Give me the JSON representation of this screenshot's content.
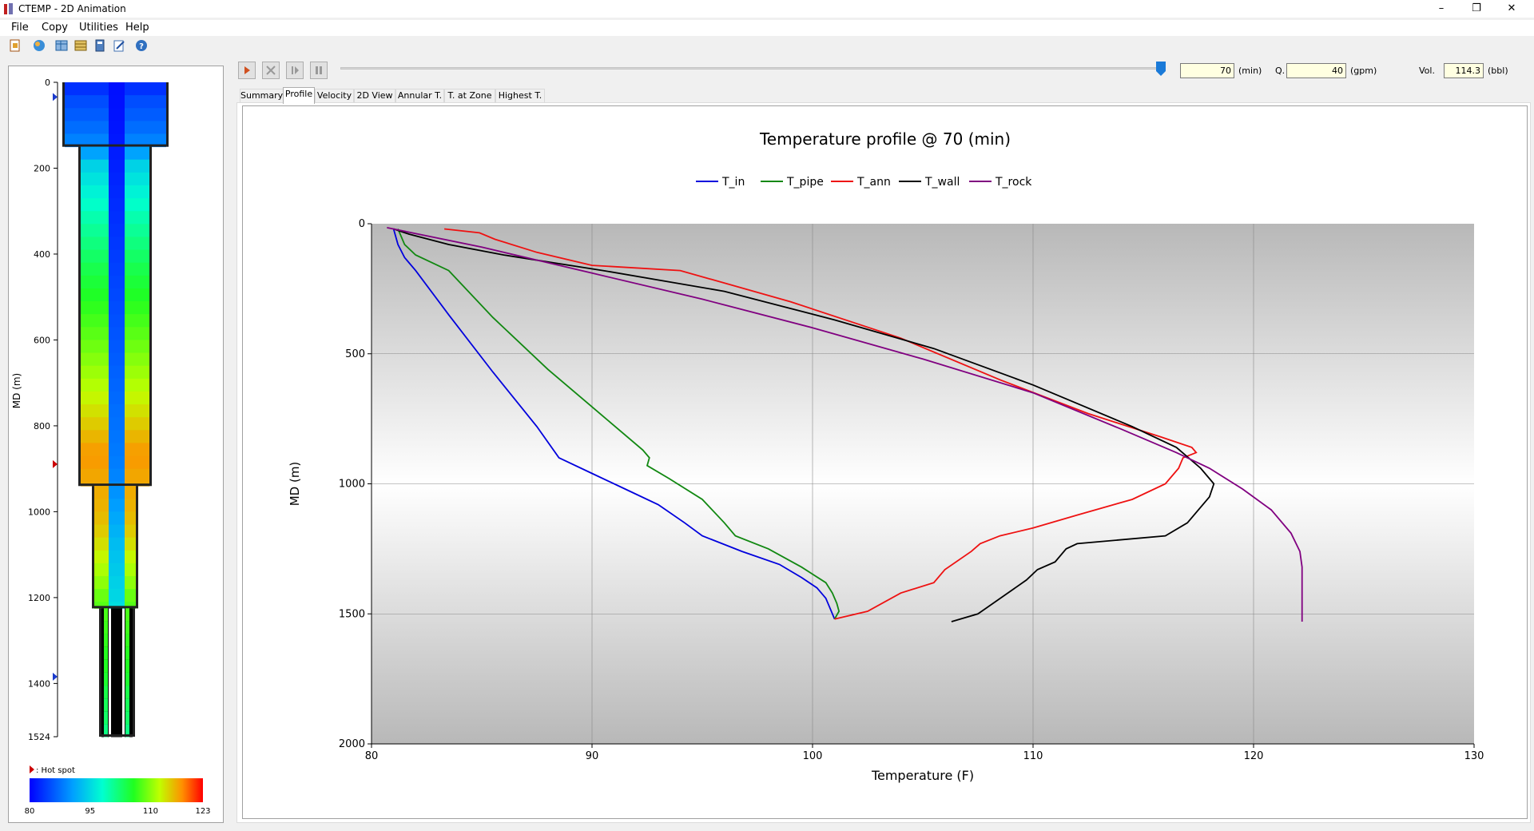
{
  "window": {
    "title": "CTEMP - 2D Animation",
    "controls": [
      "–",
      "❐",
      "✕"
    ]
  },
  "menu": [
    "File",
    "Copy",
    "Utilities",
    "Help"
  ],
  "toolbar_icons": [
    "open-icon",
    "globe-icon",
    "grid-icon",
    "table-icon",
    "calculator-icon",
    "edit-icon",
    "help-icon"
  ],
  "playback": {
    "buttons": [
      "play",
      "stop",
      "step",
      "pause"
    ],
    "slider_level": 0.97,
    "time_value": "70",
    "time_unit": "(min)",
    "q_label": "Q.",
    "q_value": "40",
    "q_unit": "(gpm)",
    "vol_label": "Vol.",
    "vol_value": "114.3",
    "vol_unit": "(bbl)"
  },
  "tabs": [
    "Summary",
    "Profile",
    "Velocity",
    "2D View",
    "Annular T.",
    "T. at Zone",
    "Highest T."
  ],
  "active_tab": "Profile",
  "well": {
    "axis_label": "MD (m)",
    "ticks": [
      "0",
      "200",
      "400",
      "600",
      "800",
      "1000",
      "1200",
      "1400",
      "1524"
    ],
    "tick_depths": [
      0,
      200,
      400,
      600,
      800,
      1000,
      1200,
      1400,
      1524
    ],
    "max_depth": 1524,
    "hotspot_label": ": Hot spot",
    "colorbar_ticks": [
      "80",
      "95",
      "110",
      "123"
    ],
    "colorbar_range": [
      80,
      123
    ]
  },
  "chart_data": {
    "type": "line",
    "title": "Temperature profile @ 70 (min)",
    "xlabel": "Temperature (F)",
    "ylabel": "MD (m)",
    "xlim": [
      80,
      130
    ],
    "ylim": [
      0,
      2000
    ],
    "y_inverted": true,
    "xticks": [
      80,
      90,
      100,
      110,
      120,
      130
    ],
    "yticks": [
      0,
      500,
      1000,
      1500,
      2000
    ],
    "grid": true,
    "legend_position": "top",
    "series": [
      {
        "name": "T_in",
        "color": "#0000dd",
        "x": [
          81.0,
          81.2,
          81.5,
          82.0,
          83.5,
          85.5,
          87.5,
          88.5,
          90.0,
          91.5,
          93.0,
          94.2,
          95.0,
          96.8,
          98.5,
          99.5,
          100.2,
          100.6,
          100.8,
          101.0
        ],
        "y": [
          20,
          80,
          130,
          180,
          350,
          570,
          780,
          900,
          960,
          1020,
          1080,
          1150,
          1200,
          1260,
          1310,
          1360,
          1400,
          1440,
          1480,
          1520
        ]
      },
      {
        "name": "T_pipe",
        "color": "#118811",
        "x": [
          81.2,
          81.5,
          82.0,
          83.5,
          85.5,
          88.0,
          90.5,
          92.3,
          92.6,
          92.5,
          93.5,
          95.0,
          96.0,
          96.5,
          98.0,
          99.5,
          100.6,
          100.9,
          101.1,
          101.2,
          101.0
        ],
        "y": [
          20,
          80,
          120,
          180,
          360,
          560,
          740,
          870,
          900,
          930,
          980,
          1060,
          1150,
          1200,
          1250,
          1320,
          1380,
          1420,
          1460,
          1490,
          1520
        ]
      },
      {
        "name": "T_ann",
        "color": "#ee1111",
        "x": [
          83.3,
          84.9,
          85.6,
          87.5,
          90.0,
          94.0,
          99.0,
          104.0,
          108.5,
          112.5,
          115.8,
          117.2,
          117.4,
          116.8,
          116.6,
          116.0,
          114.5,
          112.0,
          110.0,
          108.5,
          107.6,
          107.2,
          106.0,
          105.5,
          104.0,
          102.5,
          101.0
        ],
        "y": [
          20,
          35,
          60,
          110,
          160,
          180,
          300,
          440,
          600,
          730,
          820,
          860,
          880,
          900,
          940,
          1000,
          1060,
          1120,
          1170,
          1200,
          1230,
          1260,
          1330,
          1380,
          1420,
          1490,
          1520
        ]
      },
      {
        "name": "T_wall",
        "color": "#000000",
        "x": [
          81.0,
          81.7,
          83.5,
          86.0,
          90.5,
          96.0,
          101.0,
          105.5,
          110.0,
          114.5,
          116.5,
          117.6,
          118.2,
          118.0,
          117.0,
          116.0,
          112.0,
          111.5,
          111.0,
          110.2,
          109.7,
          107.5,
          106.3
        ],
        "y": [
          20,
          40,
          80,
          120,
          180,
          260,
          370,
          480,
          620,
          780,
          860,
          940,
          1000,
          1050,
          1150,
          1200,
          1230,
          1250,
          1300,
          1330,
          1370,
          1500,
          1530
        ]
      },
      {
        "name": "T_rock",
        "color": "#800080",
        "x": [
          80.7,
          85.0,
          90.0,
          95.0,
          100.0,
          105.0,
          110.0,
          114.0,
          116.5,
          118.0,
          119.5,
          120.8,
          121.7,
          122.1,
          122.2,
          122.2
        ],
        "y": [
          15,
          90,
          190,
          290,
          400,
          520,
          650,
          790,
          880,
          940,
          1020,
          1100,
          1190,
          1260,
          1320,
          1530
        ]
      }
    ]
  }
}
